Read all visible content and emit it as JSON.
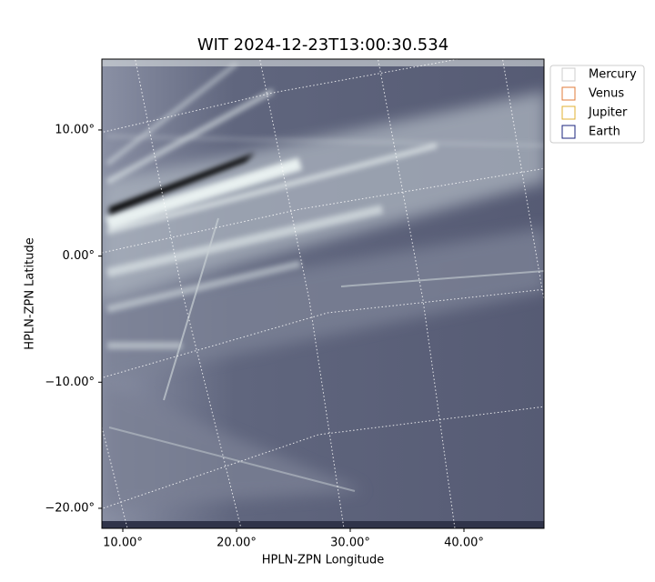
{
  "chart_data": {
    "type": "image",
    "title": "WIT 2024-12-23T13:00:30.534",
    "x_label": "HPLN-ZPN Longitude",
    "y_label": "HPLN-ZPN Latitude",
    "xlim": [
      8.16,
      47.04
    ],
    "ylim": [
      -21.59,
      15.62
    ],
    "xticks": [
      {
        "value": 10,
        "label": "10.00°"
      },
      {
        "value": 20,
        "label": "20.00°"
      },
      {
        "value": 30,
        "label": "30.00°"
      },
      {
        "value": 40,
        "label": "40.00°"
      }
    ],
    "yticks": [
      {
        "value": 10,
        "label": "10.00°"
      },
      {
        "value": 0,
        "label": "0.00°"
      },
      {
        "value": -10,
        "label": "−10.00°"
      },
      {
        "value": -20,
        "label": "−20.00°"
      }
    ],
    "legend_position": "upper right",
    "legend": [
      {
        "name": "Mercury",
        "color": "#cccccc"
      },
      {
        "name": "Venus",
        "color": "#e07b39"
      },
      {
        "name": "Jupiter",
        "color": "#e0b030"
      },
      {
        "name": "Earth",
        "color": "#1a237e"
      }
    ]
  }
}
